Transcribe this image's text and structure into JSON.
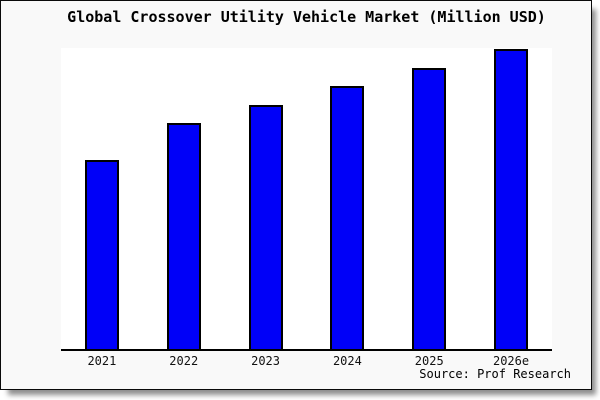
{
  "title": "Global Crossover Utility Vehicle Market (Million USD)",
  "source_note": "Source: Prof Research",
  "colors": {
    "bar_fill": "#0000f8",
    "bar_border": "#000000",
    "card_background": "#f9f9f9",
    "plot_background": "#ffffff",
    "axis": "#000000"
  },
  "chart_data": {
    "type": "bar",
    "title": "Global Crossover Utility Vehicle Market (Million USD)",
    "categories": [
      "2021",
      "2022",
      "2023",
      "2024",
      "2025",
      "2026e"
    ],
    "values": [
      62,
      74.3,
      80.5,
      86.8,
      92.7,
      99
    ],
    "series_note": "y-axis is unlabeled; values are estimated bar heights as % of plot height",
    "xlabel": "",
    "ylabel": "",
    "ylim": [
      0,
      100
    ],
    "grid": false,
    "legend": "none",
    "annotations": [
      "Source: Prof Research"
    ]
  }
}
